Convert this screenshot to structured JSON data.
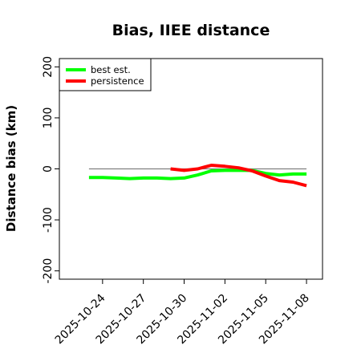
{
  "chart_data": {
    "type": "line",
    "title": "Bias, IIEE distance",
    "xlabel": "",
    "ylabel": "Distance bias (km)",
    "x_axis": {
      "type": "date",
      "range": [
        "2025-10-21",
        "2025-11-09"
      ],
      "tick_labels": [
        "2025-10-24",
        "2025-10-27",
        "2025-10-30",
        "2025-11-02",
        "2025-11-05",
        "2025-11-08"
      ]
    },
    "y_axis": {
      "range": [
        -210,
        210
      ],
      "ticks": [
        -200,
        -100,
        0,
        100,
        200
      ],
      "tick_labels": [
        "-200",
        "-100",
        "0",
        "100",
        "200"
      ]
    },
    "zero_line": {
      "y": 0,
      "from": "2025-10-23",
      "to": "2025-11-08",
      "color": "#808080"
    },
    "legend": {
      "placement": "top-left",
      "entries": [
        "best est.",
        "persistence"
      ]
    },
    "series": [
      {
        "name": "best est.",
        "color": "#00ff00",
        "points": [
          [
            "2025-10-23",
            -17
          ],
          [
            "2025-10-24",
            -17
          ],
          [
            "2025-10-25",
            -18
          ],
          [
            "2025-10-26",
            -19
          ],
          [
            "2025-10-27",
            -18
          ],
          [
            "2025-10-28",
            -18
          ],
          [
            "2025-10-29",
            -19
          ],
          [
            "2025-10-30",
            -18
          ],
          [
            "2025-10-31",
            -12
          ],
          [
            "2025-11-01",
            -4
          ],
          [
            "2025-11-02",
            -3
          ],
          [
            "2025-11-03",
            -3
          ],
          [
            "2025-11-04",
            -3
          ],
          [
            "2025-11-05",
            -9
          ],
          [
            "2025-11-06",
            -12
          ],
          [
            "2025-11-07",
            -10
          ],
          [
            "2025-11-08",
            -10
          ]
        ]
      },
      {
        "name": "persistence",
        "color": "#ff0000",
        "points": [
          [
            "2025-10-29",
            0
          ],
          [
            "2025-10-30",
            -3
          ],
          [
            "2025-10-31",
            0
          ],
          [
            "2025-11-01",
            7
          ],
          [
            "2025-11-02",
            5
          ],
          [
            "2025-11-03",
            2
          ],
          [
            "2025-11-04",
            -4
          ],
          [
            "2025-11-05",
            -14
          ],
          [
            "2025-11-06",
            -23
          ],
          [
            "2025-11-07",
            -26
          ],
          [
            "2025-11-08",
            -33
          ]
        ]
      }
    ]
  }
}
